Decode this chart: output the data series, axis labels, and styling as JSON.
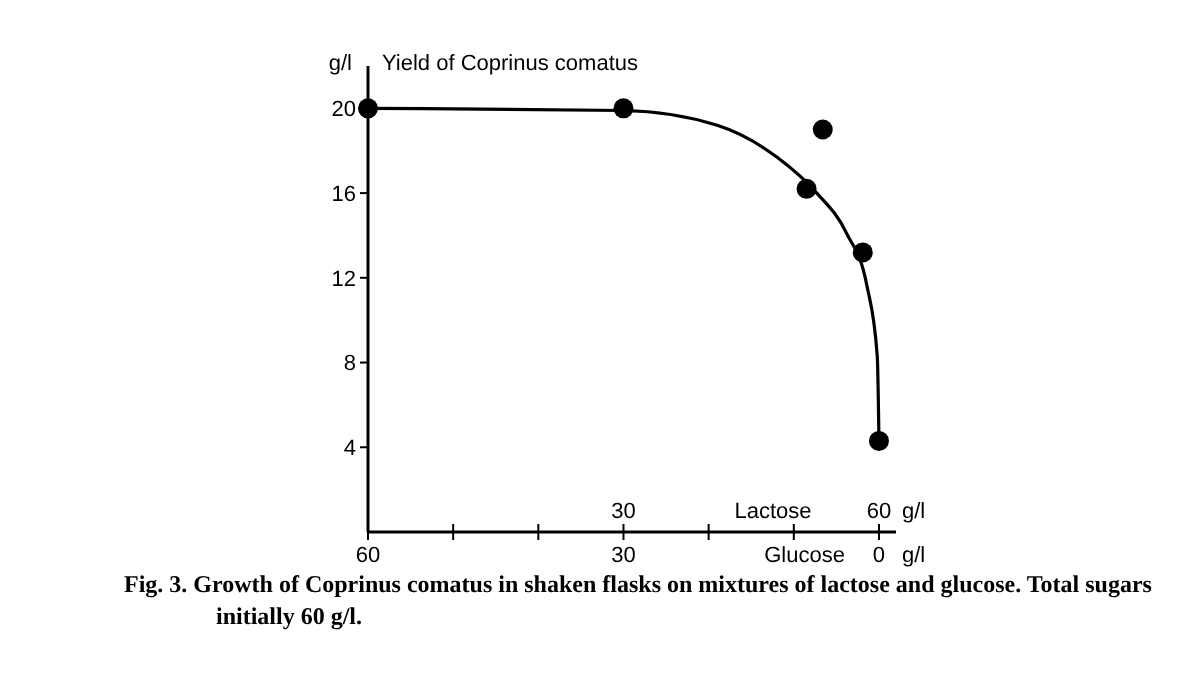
{
  "chart_data": {
    "type": "scatter",
    "title": "Yield of Coprinus comatus",
    "ylabel": "g/l",
    "xlabel": "Glucose",
    "x2label": "Lactose",
    "annotations": [
      "g/l",
      "g/l",
      "Fig. 3. Growth of Coprinus comatus in shaken flasks on mixtures of lactose and glucose. Total sugars initially 60 g/l."
    ],
    "series": [
      {
        "type": "line",
        "color": "#000000",
        "x": [
          60,
          30,
          19,
          12,
          7.3,
          3.8,
          1.4,
          0.2,
          0
        ],
        "values": [
          20,
          19.9,
          19.2,
          17.7,
          16,
          14.1,
          11.6,
          8.3,
          4.3
        ],
        "marker": "none"
      },
      {
        "color": "#000000",
        "x": [
          60,
          30,
          8.5,
          6.6,
          1.9,
          0
        ],
        "values": [
          20,
          20,
          16.2,
          19,
          13.2,
          4.3
        ],
        "marker": "circle"
      }
    ],
    "xlim": [
      60,
      -2
    ],
    "ylim": [
      0,
      22
    ],
    "xticks": [
      60,
      {
        "value": 50,
        "label": null
      },
      {
        "value": 40,
        "label": null
      },
      30,
      {
        "value": 20,
        "label": null
      },
      {
        "value": 10,
        "label": null
      },
      0
    ],
    "x2lim": [
      0,
      62
    ],
    "x2ticks": [
      30,
      60
    ],
    "yticks": [
      4,
      8,
      12,
      16,
      20
    ]
  }
}
